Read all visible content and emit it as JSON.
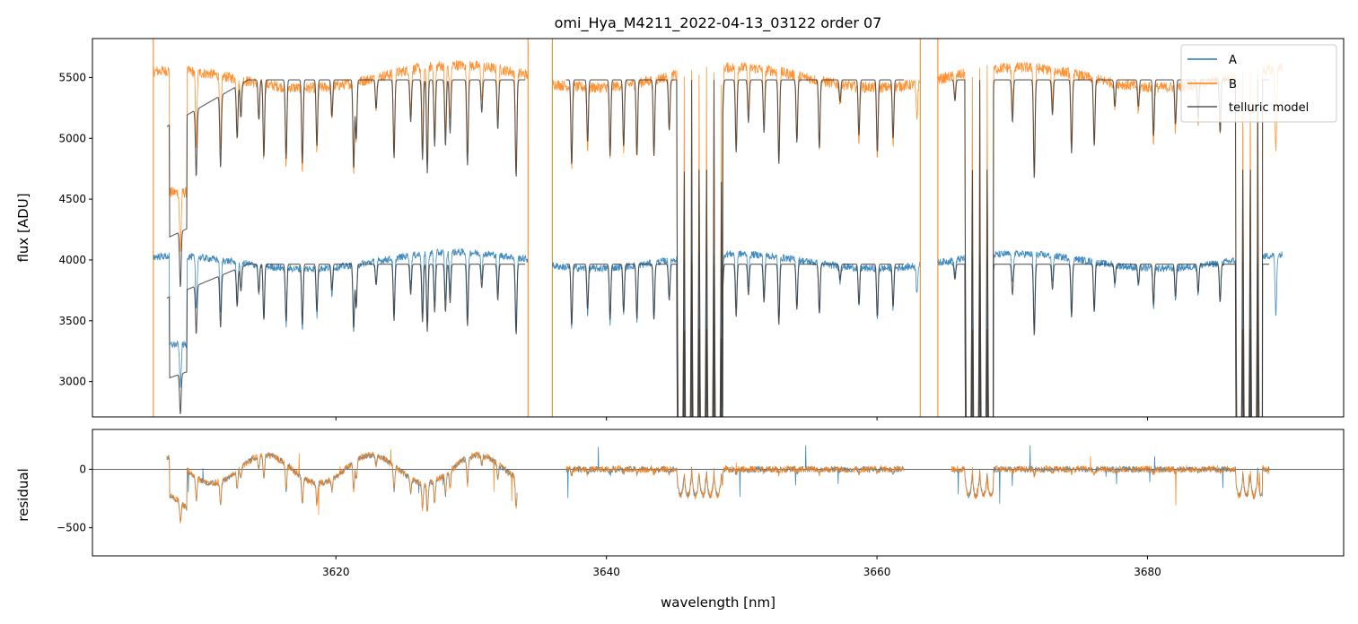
{
  "chart_data": {
    "type": "line",
    "title": "omi_Hya_M4211_2022-04-13_03122  order 07",
    "xlabel": "wavelength [nm]",
    "xlim": [
      3602,
      3694.5
    ],
    "xticks": [
      3620,
      3640,
      3660,
      3680
    ],
    "colors": {
      "A": "#1f77b4",
      "B": "#ff7f0e",
      "model": "#333333"
    },
    "top_panel": {
      "ylabel": "flux [ADU]",
      "ylim": [
        2710,
        5820
      ],
      "yticks": [
        3000,
        3500,
        4000,
        4500,
        5000,
        5500
      ],
      "legend": [
        "A",
        "B",
        "telluric model"
      ],
      "legend_position": "upper right",
      "segments": [
        [
          3606.5,
          3634.2
        ],
        [
          3636,
          3663.2
        ],
        [
          3664.5,
          3690
        ]
      ],
      "model_segments": [
        [
          3607.5,
          3634
        ],
        [
          3637,
          3662
        ],
        [
          3665.5,
          3689
        ]
      ],
      "levels": {
        "A": 3990,
        "B": 5500,
        "A_model": 3965,
        "B_model": 5480
      },
      "strong_telluric_bands": [
        [
          3645.2,
          3648.6
        ],
        [
          3666.5,
          3668.6
        ],
        [
          3686.5,
          3688.5
        ]
      ]
    },
    "bottom_panel": {
      "ylabel": "residual",
      "ylim": [
        -740,
        340
      ],
      "yticks": [
        -500,
        0
      ],
      "zero_line": 0,
      "segments": [
        [
          3607.5,
          3633.4
        ],
        [
          3637,
          3662
        ],
        [
          3665.5,
          3689
        ]
      ]
    }
  }
}
